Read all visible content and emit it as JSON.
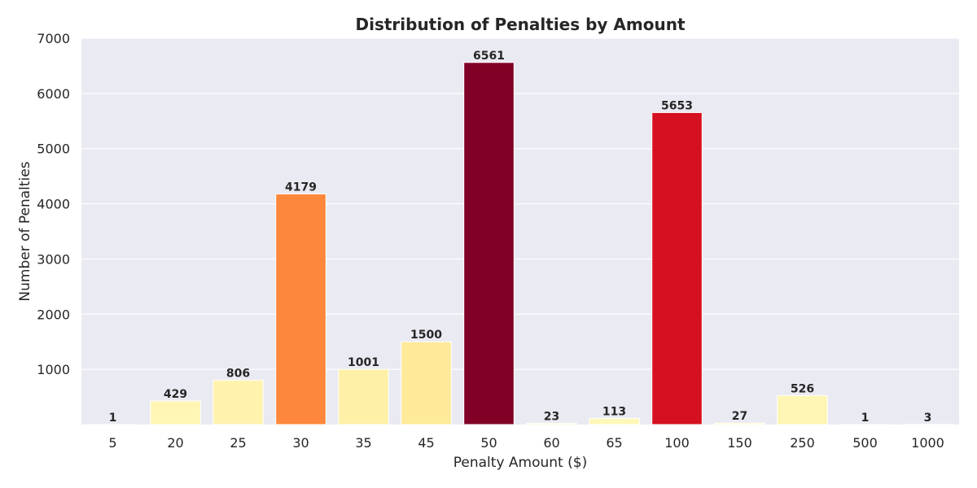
{
  "chart_data": {
    "type": "bar",
    "title": "Distribution of Penalties by Amount",
    "xlabel": "Penalty Amount ($)",
    "ylabel": "Number of Penalties",
    "categories": [
      "5",
      "20",
      "25",
      "30",
      "35",
      "45",
      "50",
      "60",
      "65",
      "100",
      "150",
      "250",
      "500",
      "1000"
    ],
    "values": [
      1,
      429,
      806,
      4179,
      1001,
      1500,
      6561,
      23,
      113,
      5653,
      27,
      526,
      1,
      3
    ],
    "ylim": [
      0,
      7000
    ],
    "yticks": [
      1000,
      2000,
      3000,
      4000,
      5000,
      6000,
      7000
    ],
    "grid": true,
    "legend": "none",
    "colors": {
      "background": "#eaeaf2",
      "grid": "#ffffff",
      "palette_low": "#ffffcc",
      "palette_mid": "#fd8d3c",
      "palette_high": "#800026"
    }
  }
}
